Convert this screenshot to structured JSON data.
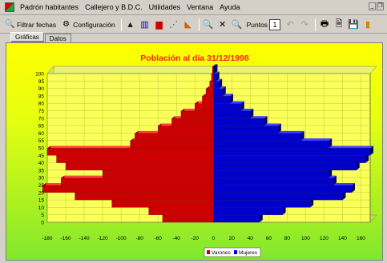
{
  "menu": {
    "items": [
      "Padrón habitantes",
      "Callejero y B.D.C.",
      "Utilidades",
      "Ventana",
      "Ayuda"
    ]
  },
  "toolbar": {
    "filter_label": "Filtrar fechas",
    "config_label": "Configuración",
    "points_label": "Puntos",
    "points_value": "1"
  },
  "tabs": [
    "Gráficas",
    "Datos"
  ],
  "chart_data": {
    "type": "bar",
    "orientation": "horizontal",
    "title": "Población al día 31/12/1998",
    "y_ticks": [
      0,
      5,
      10,
      15,
      20,
      25,
      30,
      35,
      40,
      45,
      50,
      55,
      60,
      65,
      70,
      75,
      80,
      85,
      90,
      95,
      100
    ],
    "x_ticks": [
      -180,
      -160,
      -140,
      -120,
      -100,
      -80,
      -60,
      -40,
      -20,
      0,
      20,
      40,
      60,
      80,
      100,
      120,
      140,
      160
    ],
    "xlim": [
      -180,
      170
    ],
    "ylim": [
      0,
      100
    ],
    "ages": [
      0,
      5,
      10,
      15,
      20,
      25,
      30,
      35,
      40,
      45,
      50,
      55,
      60,
      65,
      70,
      75,
      80,
      85,
      90,
      95,
      100
    ],
    "series": [
      {
        "name": "Varones",
        "color": "#cc0000",
        "values": [
          -55,
          -70,
          -110,
          -150,
          -185,
          -165,
          -120,
          -160,
          -170,
          -180,
          -90,
          -85,
          -60,
          -45,
          -35,
          -20,
          -12,
          -8,
          -4,
          -2,
          -1
        ]
      },
      {
        "name": "Mujeres",
        "color": "#0000cc",
        "values": [
          50,
          75,
          105,
          140,
          150,
          130,
          125,
          155,
          165,
          170,
          125,
          95,
          70,
          55,
          40,
          30,
          18,
          10,
          6,
          3,
          1
        ]
      }
    ],
    "legend": [
      "Varones",
      "Mujeres"
    ],
    "legend_position": "bottom-center",
    "grid": true
  },
  "colors": {
    "male": "#cc0000",
    "female": "#0000cc",
    "title": "#ff2020"
  }
}
